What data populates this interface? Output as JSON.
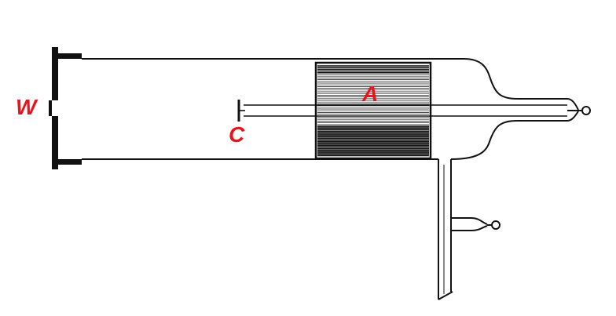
{
  "labels": {
    "w": "W",
    "a": "A",
    "c": "C"
  },
  "colors": {
    "label": "#e8141c",
    "ink": "#111111",
    "background": "#ffffff"
  }
}
